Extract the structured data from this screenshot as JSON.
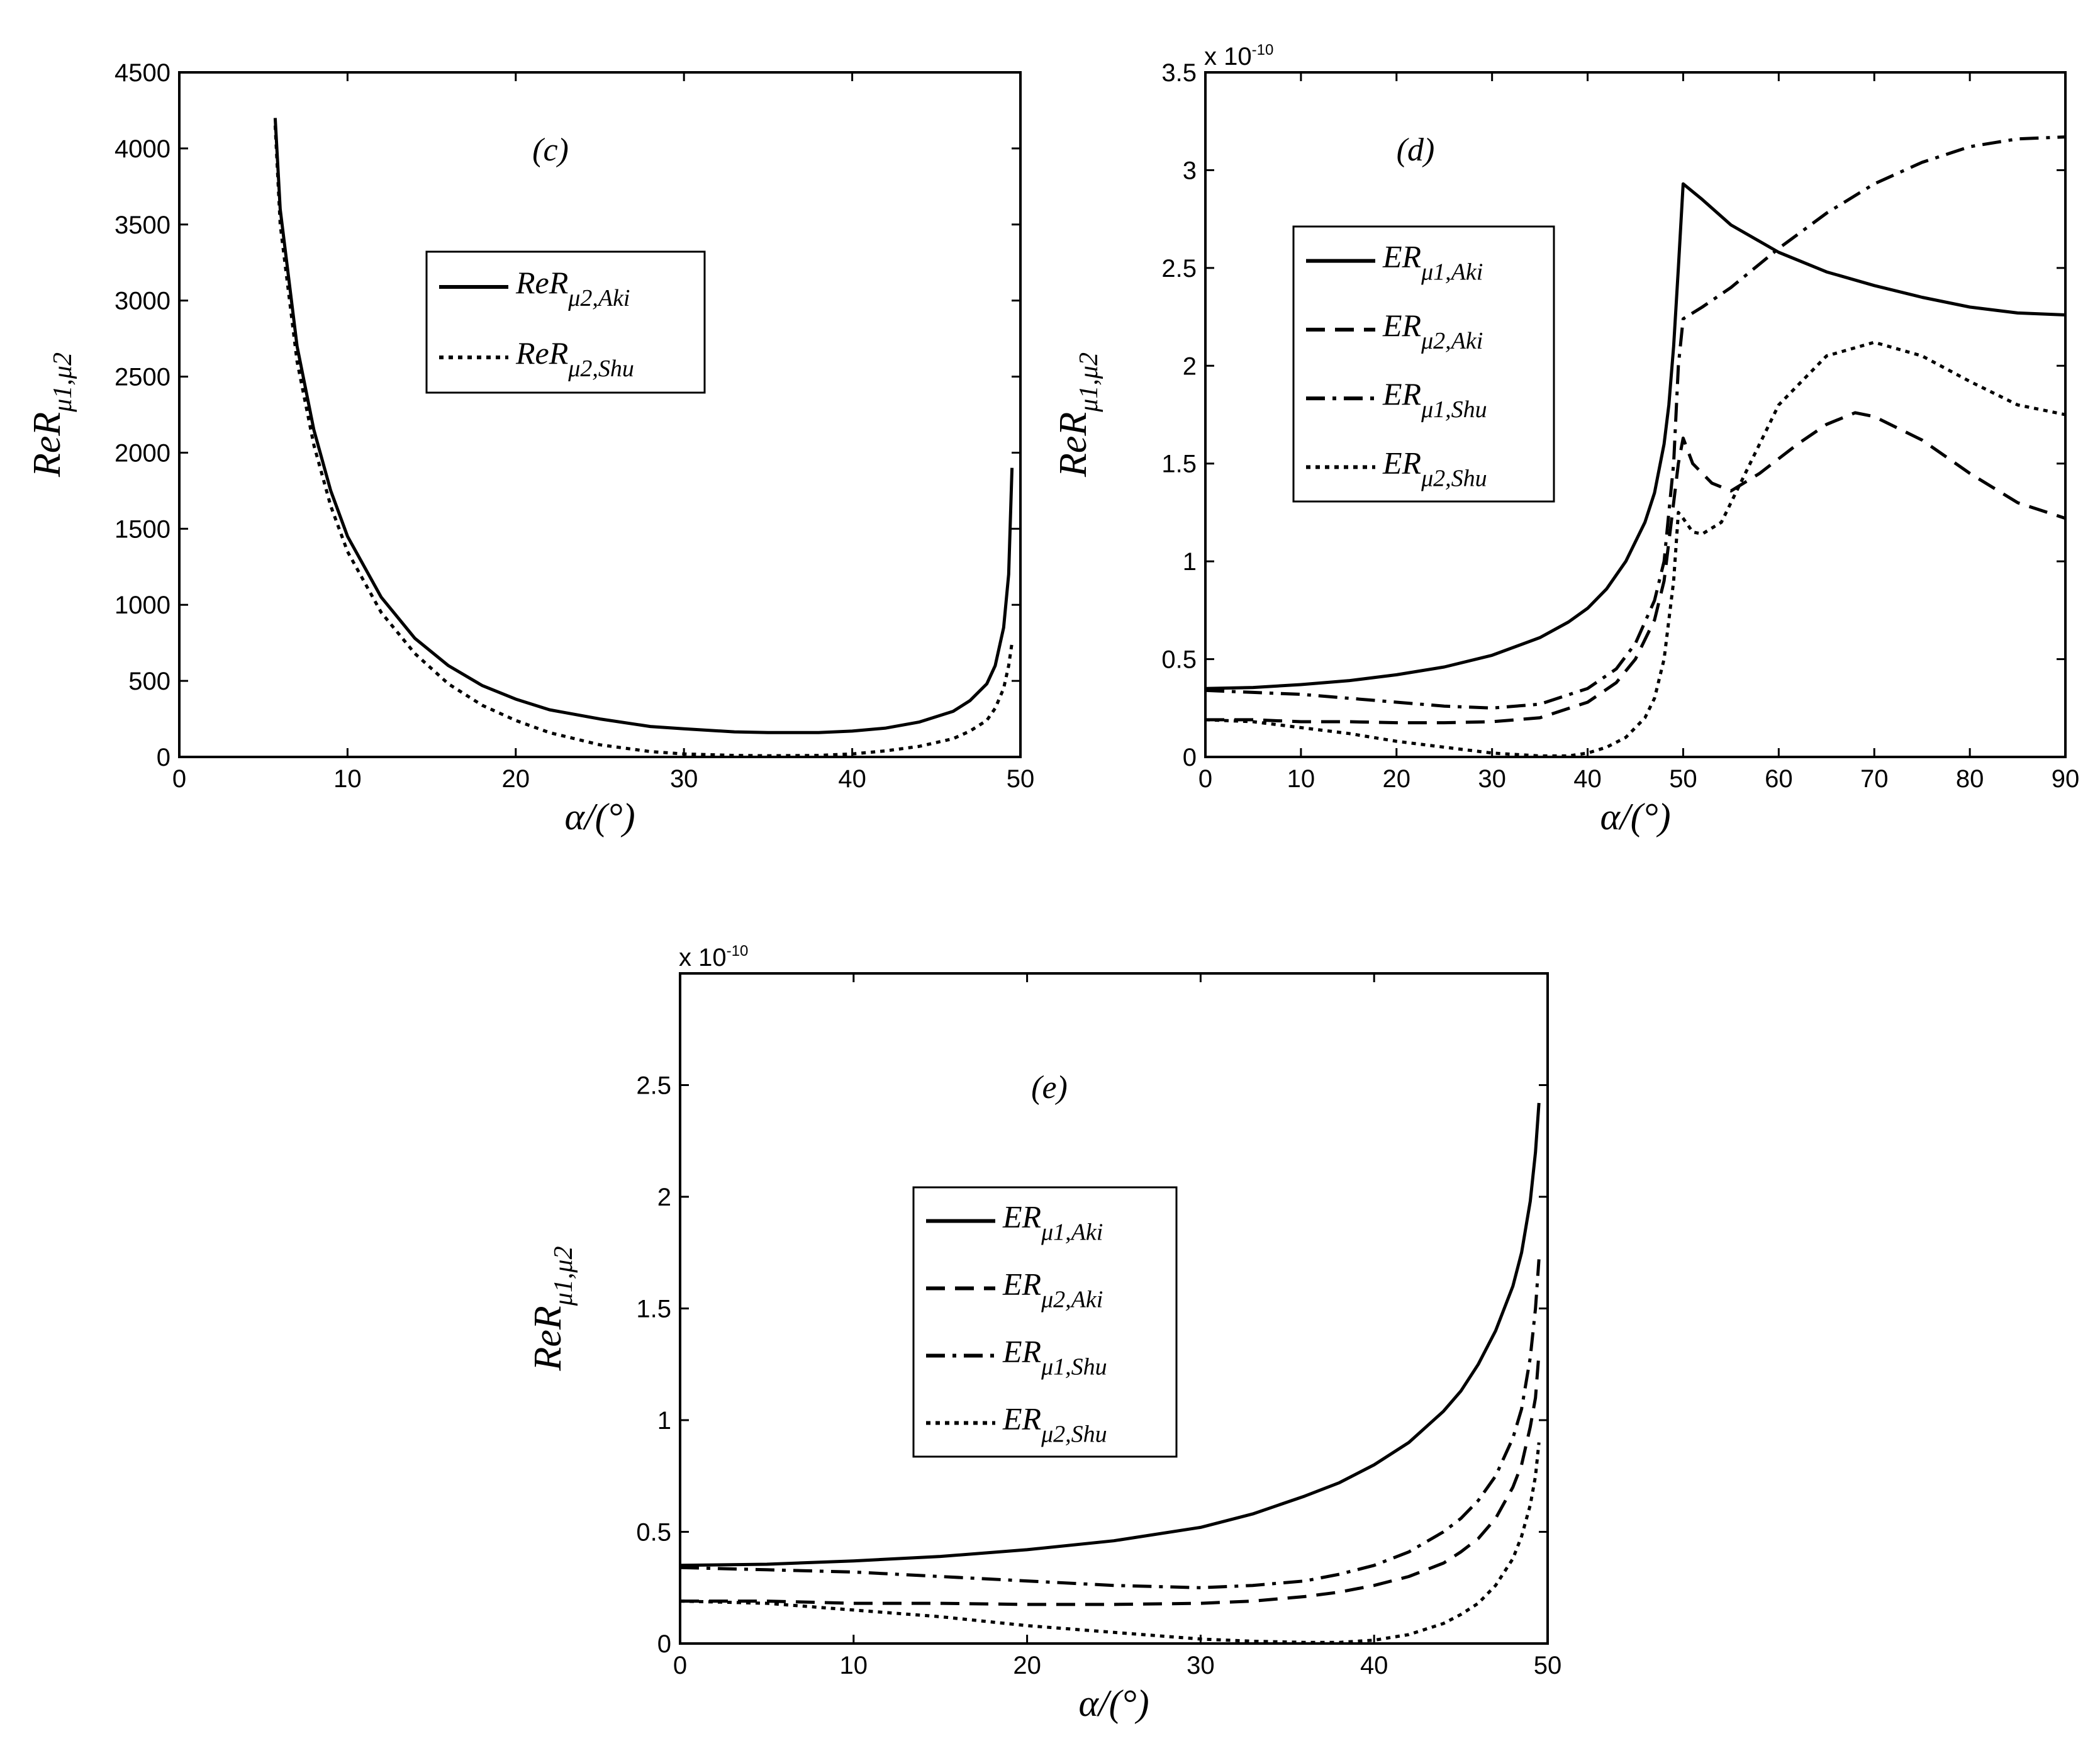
{
  "chart_data": [
    {
      "id": "c",
      "type": "line",
      "panel_label": "(c)",
      "xlabel": "α/(°)",
      "ylabel": "ReR_{μ1,μ2}",
      "ylabel_main": "ReR",
      "ylabel_sub": "μ1,μ2",
      "exponent_label": "",
      "xlim": [
        0,
        50
      ],
      "ylim": [
        0,
        4500
      ],
      "xticks": [
        0,
        10,
        20,
        30,
        40,
        50
      ],
      "yticks": [
        0,
        500,
        1000,
        1500,
        2000,
        2500,
        3000,
        3500,
        4000,
        4500
      ],
      "ytick_labels": [
        "0",
        "500",
        "1000",
        "1500",
        "2000",
        "2500",
        "3000",
        "3500",
        "4000",
        "4500"
      ],
      "legend_position": "upper-center",
      "series": [
        {
          "name": "ReR_{μ2,Aki}",
          "label_main": "ReR",
          "label_sub": "μ2,Aki",
          "style": "solid",
          "x": [
            5.7,
            6,
            7,
            8,
            9,
            10,
            12,
            14,
            16,
            18,
            20,
            22,
            25,
            28,
            30,
            33,
            35,
            38,
            40,
            42,
            44,
            46,
            47,
            48,
            48.5,
            49,
            49.3,
            49.5
          ],
          "y": [
            4200,
            3600,
            2700,
            2150,
            1750,
            1450,
            1050,
            780,
            600,
            470,
            380,
            310,
            250,
            200,
            185,
            165,
            160,
            160,
            170,
            190,
            230,
            300,
            370,
            480,
            600,
            850,
            1200,
            1900
          ]
        },
        {
          "name": "ReR_{μ2,Shu}",
          "label_main": "ReR",
          "label_sub": "μ2,Shu",
          "style": "dotted",
          "x": [
            5.7,
            6,
            7,
            8,
            9,
            10,
            12,
            14,
            16,
            18,
            20,
            22,
            25,
            28,
            30,
            33,
            35,
            38,
            40,
            42,
            44,
            46,
            47,
            48,
            48.5,
            49,
            49.3,
            49.5
          ],
          "y": [
            4150,
            3500,
            2600,
            2050,
            1650,
            1350,
            950,
            680,
            480,
            340,
            240,
            160,
            80,
            35,
            20,
            10,
            8,
            10,
            20,
            40,
            70,
            120,
            170,
            240,
            320,
            450,
            600,
            750
          ]
        }
      ]
    },
    {
      "id": "d",
      "type": "line",
      "panel_label": "(d)",
      "xlabel": "α/(°)",
      "ylabel": "ReR_{μ1,μ2}",
      "ylabel_main": "ReR",
      "ylabel_sub": "μ1,μ2",
      "exponent_label": "x 10",
      "exponent_power": "-10",
      "xlim": [
        0,
        90
      ],
      "ylim": [
        0,
        3.5
      ],
      "xticks": [
        0,
        10,
        20,
        30,
        40,
        50,
        60,
        70,
        80,
        90
      ],
      "yticks": [
        0,
        0.5,
        1,
        1.5,
        2,
        2.5,
        3,
        3.5
      ],
      "ytick_labels": [
        "0",
        "0.5",
        "1",
        "1.5",
        "2",
        "2.5",
        "3",
        "3.5"
      ],
      "legend_position": "upper-left",
      "series": [
        {
          "name": "ER_{μ1,Aki}",
          "label_main": "ER",
          "label_sub": "μ1,Aki",
          "style": "solid",
          "x": [
            0,
            5,
            10,
            15,
            20,
            25,
            30,
            35,
            38,
            40,
            42,
            44,
            46,
            47,
            48,
            48.5,
            49,
            49.5,
            50,
            52,
            55,
            60,
            65,
            70,
            75,
            80,
            85,
            90
          ],
          "y": [
            0.35,
            0.355,
            0.37,
            0.39,
            0.42,
            0.46,
            0.52,
            0.61,
            0.69,
            0.76,
            0.86,
            1.0,
            1.2,
            1.35,
            1.6,
            1.8,
            2.1,
            2.5,
            2.93,
            2.85,
            2.72,
            2.58,
            2.48,
            2.41,
            2.35,
            2.3,
            2.27,
            2.26
          ]
        },
        {
          "name": "ER_{μ2,Aki}",
          "label_main": "ER",
          "label_sub": "μ2,Aki",
          "style": "dashed",
          "x": [
            0,
            5,
            10,
            15,
            20,
            25,
            30,
            35,
            40,
            43,
            45,
            47,
            48,
            49,
            49.5,
            50,
            51,
            53,
            55,
            58,
            62,
            65,
            68,
            70,
            75,
            80,
            85,
            90
          ],
          "y": [
            0.19,
            0.19,
            0.18,
            0.18,
            0.175,
            0.175,
            0.18,
            0.2,
            0.28,
            0.38,
            0.5,
            0.7,
            0.9,
            1.3,
            1.5,
            1.63,
            1.5,
            1.4,
            1.36,
            1.45,
            1.6,
            1.7,
            1.76,
            1.74,
            1.62,
            1.45,
            1.3,
            1.22
          ]
        },
        {
          "name": "ER_{μ1,Shu}",
          "label_main": "ER",
          "label_sub": "μ1,Shu",
          "style": "dashdot",
          "x": [
            0,
            5,
            10,
            15,
            20,
            25,
            30,
            35,
            40,
            43,
            45,
            47,
            48,
            49,
            49.5,
            50,
            52,
            55,
            60,
            65,
            70,
            75,
            80,
            85,
            90
          ],
          "y": [
            0.34,
            0.33,
            0.32,
            0.3,
            0.28,
            0.26,
            0.25,
            0.27,
            0.35,
            0.45,
            0.58,
            0.8,
            1.0,
            1.5,
            2.0,
            2.24,
            2.3,
            2.4,
            2.6,
            2.78,
            2.93,
            3.04,
            3.12,
            3.16,
            3.17
          ]
        },
        {
          "name": "ER_{μ2,Shu}",
          "label_main": "ER",
          "label_sub": "μ2,Shu",
          "style": "dotted",
          "x": [
            0,
            5,
            10,
            15,
            20,
            25,
            30,
            35,
            38,
            40,
            42,
            44,
            46,
            47,
            48,
            49,
            49.5,
            50,
            51,
            52,
            54,
            57,
            60,
            65,
            70,
            75,
            80,
            85,
            90
          ],
          "y": [
            0.19,
            0.18,
            0.15,
            0.12,
            0.08,
            0.05,
            0.02,
            0.005,
            0.005,
            0.02,
            0.05,
            0.1,
            0.2,
            0.3,
            0.5,
            0.9,
            1.25,
            1.22,
            1.15,
            1.14,
            1.2,
            1.5,
            1.8,
            2.05,
            2.12,
            2.05,
            1.92,
            1.8,
            1.75
          ]
        }
      ]
    },
    {
      "id": "e",
      "type": "line",
      "panel_label": "(e)",
      "xlabel": "α/(°)",
      "ylabel": "ReR_{μ1,μ2}",
      "ylabel_main": "ReR",
      "ylabel_sub": "μ1,μ2",
      "exponent_label": "x 10",
      "exponent_power": "-10",
      "xlim": [
        0,
        50
      ],
      "ylim": [
        0,
        3.0
      ],
      "xticks": [
        0,
        10,
        20,
        30,
        40,
        50
      ],
      "yticks": [
        0,
        0.5,
        1,
        1.5,
        2,
        2.5
      ],
      "ytick_labels": [
        "0",
        "0.5",
        "1",
        "1.5",
        "2",
        "2.5"
      ],
      "legend_position": "center-left",
      "series": [
        {
          "name": "ER_{μ1,Aki}",
          "label_main": "ER",
          "label_sub": "μ1,Aki",
          "style": "solid",
          "x": [
            0,
            5,
            10,
            15,
            20,
            25,
            30,
            33,
            36,
            38,
            40,
            42,
            44,
            45,
            46,
            47,
            48,
            48.5,
            49,
            49.3,
            49.5
          ],
          "y": [
            0.35,
            0.355,
            0.37,
            0.39,
            0.42,
            0.46,
            0.52,
            0.58,
            0.66,
            0.72,
            0.8,
            0.9,
            1.04,
            1.13,
            1.25,
            1.4,
            1.6,
            1.75,
            1.98,
            2.2,
            2.42
          ]
        },
        {
          "name": "ER_{μ2,Aki}",
          "label_main": "ER",
          "label_sub": "μ2,Aki",
          "style": "dashed",
          "x": [
            0,
            5,
            10,
            15,
            20,
            25,
            30,
            33,
            36,
            38,
            40,
            42,
            44,
            45,
            46,
            47,
            48,
            48.5,
            49,
            49.3,
            49.5
          ],
          "y": [
            0.19,
            0.19,
            0.18,
            0.18,
            0.175,
            0.175,
            0.18,
            0.19,
            0.21,
            0.23,
            0.26,
            0.3,
            0.36,
            0.41,
            0.47,
            0.56,
            0.7,
            0.8,
            0.97,
            1.1,
            1.3
          ]
        },
        {
          "name": "ER_{μ1,Shu}",
          "label_main": "ER",
          "label_sub": "μ1,Shu",
          "style": "dashdot",
          "x": [
            0,
            5,
            10,
            15,
            20,
            25,
            30,
            33,
            36,
            38,
            40,
            42,
            44,
            45,
            46,
            47,
            48,
            48.5,
            49,
            49.3,
            49.5
          ],
          "y": [
            0.34,
            0.33,
            0.32,
            0.3,
            0.28,
            0.26,
            0.25,
            0.26,
            0.28,
            0.31,
            0.35,
            0.41,
            0.5,
            0.56,
            0.64,
            0.75,
            0.92,
            1.05,
            1.28,
            1.5,
            1.72
          ]
        },
        {
          "name": "ER_{μ2,Shu}",
          "label_main": "ER",
          "label_sub": "μ2,Shu",
          "style": "dotted",
          "x": [
            0,
            5,
            10,
            15,
            20,
            25,
            30,
            33,
            36,
            38,
            40,
            42,
            44,
            45,
            46,
            47,
            48,
            48.5,
            49,
            49.3,
            49.5
          ],
          "y": [
            0.19,
            0.18,
            0.15,
            0.12,
            0.08,
            0.05,
            0.02,
            0.01,
            0.005,
            0.005,
            0.015,
            0.04,
            0.09,
            0.13,
            0.18,
            0.26,
            0.38,
            0.48,
            0.62,
            0.75,
            0.9
          ]
        }
      ]
    }
  ]
}
